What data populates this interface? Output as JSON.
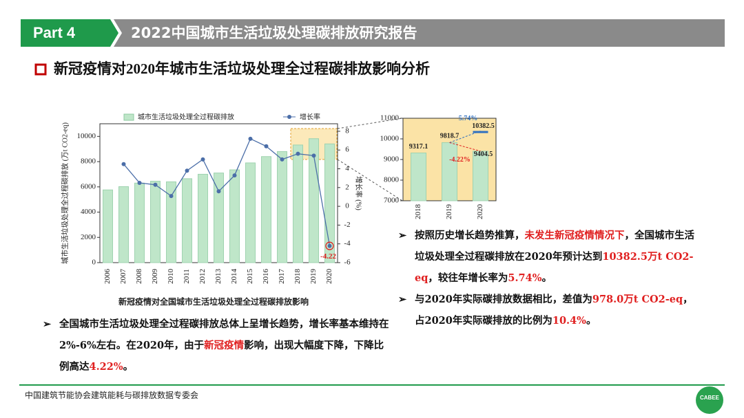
{
  "header": {
    "part": "Part 4",
    "title": "2022中国城市生活垃圾处理碳排放研究报告"
  },
  "section_title": "新冠疫情对2020年城市生活垃圾处理全过程碳排放影响分析",
  "chart_data": [
    {
      "type": "combo",
      "title": "新冠疫情对全国城市生活垃圾处理全过程碳排放影响",
      "ylabel": "城市生活垃圾处理全过程碳排放 (万t CO2-eq)",
      "y2label": "增长率 (%)",
      "categories": [
        "2006",
        "2007",
        "2008",
        "2009",
        "2010",
        "2011",
        "2012",
        "2013",
        "2014",
        "2015",
        "2016",
        "2017",
        "2018",
        "2019",
        "2020"
      ],
      "series": [
        {
          "name": "城市生活垃圾处理全过程碳排放",
          "color": "#bfe6c9",
          "type": "bar",
          "values": [
            5760,
            6020,
            6300,
            6450,
            6400,
            6650,
            7000,
            7100,
            7350,
            7900,
            8400,
            8800,
            9317.1,
            9818.7,
            9404.5
          ]
        },
        {
          "name": "增长率",
          "color": "#4b6ea8",
          "type": "line",
          "axis": "y2",
          "values": [
            null,
            4.5,
            2.5,
            2.3,
            1.1,
            3.8,
            5.0,
            1.6,
            3.3,
            7.2,
            6.4,
            5.0,
            5.6,
            5.4,
            -4.22
          ],
          "value_labels": [
            null,
            null,
            null,
            null,
            null,
            null,
            null,
            null,
            null,
            null,
            null,
            null,
            null,
            null,
            "-4.22"
          ]
        }
      ],
      "ylim": [
        0,
        11000
      ],
      "yticks": [
        0,
        2000,
        4000,
        6000,
        8000,
        10000
      ],
      "y2lim": [
        -6,
        8.8
      ],
      "y2ticks": [
        -6,
        -4,
        -2,
        0,
        2,
        4,
        6,
        8
      ],
      "legend": "top"
    },
    {
      "type": "bar",
      "categories": [
        "2018",
        "2019",
        "2020"
      ],
      "values": [
        9317.1,
        9818.7,
        9404.5
      ],
      "color": "#bfe6c9",
      "projection": 10382.5,
      "annotations": [
        {
          "text": "5.74%",
          "color": "#2e6fc0"
        },
        {
          "text": "-4.22%",
          "color": "#e02020"
        }
      ],
      "ylim": [
        7000,
        11000
      ],
      "yticks": [
        7000,
        8000,
        9000,
        10000,
        11000
      ]
    }
  ],
  "left_text": [
    [
      {
        "text": "全国城市生活垃圾处理全过程碳排放总体上呈增长趋势，增长率基本维持在2%-6%左右。在2020年，由于"
      },
      {
        "text": "新冠疫情",
        "highlight": true
      },
      {
        "text": "影响，出现大幅度下降，下降比例高达"
      },
      {
        "text": "4.22%",
        "highlight": true
      },
      {
        "text": "。"
      }
    ]
  ],
  "right_text": [
    [
      {
        "text": "按照历史增长趋势推算，"
      },
      {
        "text": "未发生新冠疫情情况下",
        "highlight": true
      },
      {
        "text": "，全国城市生活垃圾处理全过程碳排放在2020年预计达到"
      },
      {
        "text": "10382.5万t CO2-eq",
        "highlight": true
      },
      {
        "text": "，较往年增长率为"
      },
      {
        "text": "5.74%",
        "highlight": true
      },
      {
        "text": "。"
      }
    ],
    [
      {
        "text": "与2020年实际碳排放数据相比，差值为"
      },
      {
        "text": "978.0万t CO2-eq",
        "highlight": true
      },
      {
        "text": "，占2020年实际碳排放的比例为"
      },
      {
        "text": "10.4%",
        "highlight": true
      },
      {
        "text": "。"
      }
    ]
  ],
  "footer": {
    "org": "中国建筑节能协会建筑能耗与碳排放数据专委会",
    "logo": "CABEE"
  }
}
